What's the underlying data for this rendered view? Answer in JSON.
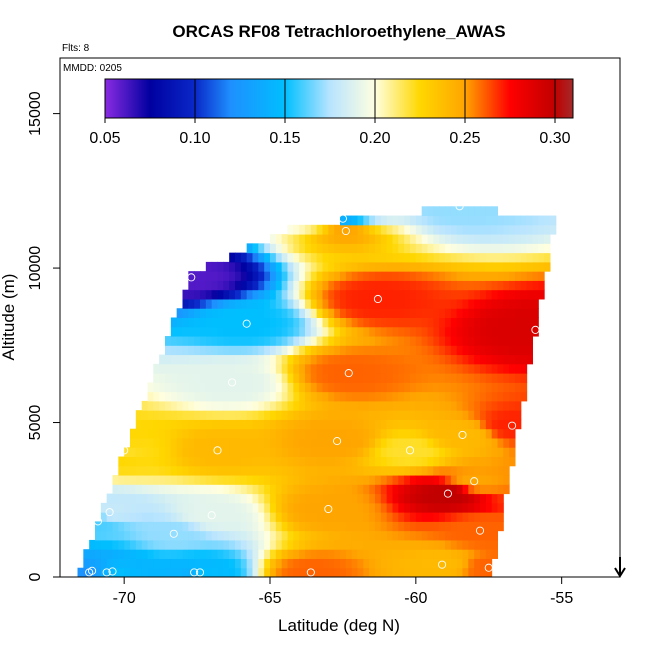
{
  "chart_data": {
    "type": "heatmap",
    "title": "ORCAS RF08 Tetrachloroethylene_AWAS",
    "subtitle_flts": "Flts: 8",
    "subtitle_mmdd": "MMDD: 0205",
    "xlabel": "Latitude (deg N)",
    "ylabel": "Altitude (m)",
    "xlim": [
      -72.2,
      -53.0
    ],
    "ylim": [
      0,
      16800
    ],
    "x_ticks": [
      -70,
      -65,
      -60,
      -55
    ],
    "x_tick_labels": [
      "-70",
      "-65",
      "-60",
      "-55"
    ],
    "y_ticks": [
      0,
      5000,
      10000,
      15000
    ],
    "y_tick_labels": [
      "0",
      "5000",
      "10000",
      "15000"
    ],
    "colorbar": {
      "range": [
        0.05,
        0.31
      ],
      "ticks": [
        0.05,
        0.1,
        0.15,
        0.2,
        0.25,
        0.3
      ],
      "tick_labels": [
        "0.05",
        "0.10",
        "0.15",
        "0.20",
        "0.25",
        "0.30"
      ]
    },
    "color_stops": [
      {
        "v": 0.05,
        "c": "#8a2be2"
      },
      {
        "v": 0.075,
        "c": "#0000a0"
      },
      {
        "v": 0.1,
        "c": "#0a28c8"
      },
      {
        "v": 0.12,
        "c": "#1e90ff"
      },
      {
        "v": 0.15,
        "c": "#00bfff"
      },
      {
        "v": 0.175,
        "c": "#b8e4ff"
      },
      {
        "v": 0.2,
        "c": "#ffffe0"
      },
      {
        "v": 0.225,
        "c": "#ffd700"
      },
      {
        "v": 0.25,
        "c": "#ffa500"
      },
      {
        "v": 0.275,
        "c": "#ff0000"
      },
      {
        "v": 0.3,
        "c": "#c00000"
      },
      {
        "v": 0.31,
        "c": "#a52a2a"
      }
    ],
    "samples": [
      {
        "lat": -71.2,
        "alt": 150,
        "value": 0.12
      },
      {
        "lat": -71.1,
        "alt": 200,
        "value": 0.13
      },
      {
        "lat": -70.6,
        "alt": 150,
        "value": 0.14
      },
      {
        "lat": -70.4,
        "alt": 180,
        "value": 0.15
      },
      {
        "lat": -70.9,
        "alt": 1800,
        "value": 0.16
      },
      {
        "lat": -70.5,
        "alt": 2100,
        "value": 0.18
      },
      {
        "lat": -70.2,
        "alt": 4100,
        "value": 0.23
      },
      {
        "lat": -70.0,
        "alt": 4100,
        "value": 0.22
      },
      {
        "lat": -68.3,
        "alt": 1400,
        "value": 0.17
      },
      {
        "lat": -67.6,
        "alt": 150,
        "value": 0.14
      },
      {
        "lat": -67.4,
        "alt": 150,
        "value": 0.15
      },
      {
        "lat": -67.0,
        "alt": 2000,
        "value": 0.19
      },
      {
        "lat": -66.8,
        "alt": 4100,
        "value": 0.24
      },
      {
        "lat": -66.3,
        "alt": 6300,
        "value": 0.19
      },
      {
        "lat": -65.8,
        "alt": 8200,
        "value": 0.15
      },
      {
        "lat": -67.7,
        "alt": 9700,
        "value": 0.06
      },
      {
        "lat": -63.6,
        "alt": 150,
        "value": 0.26
      },
      {
        "lat": -63.0,
        "alt": 2200,
        "value": 0.25
      },
      {
        "lat": -62.7,
        "alt": 4400,
        "value": 0.25
      },
      {
        "lat": -62.3,
        "alt": 6600,
        "value": 0.26
      },
      {
        "lat": -62.4,
        "alt": 11200,
        "value": 0.25
      },
      {
        "lat": -62.5,
        "alt": 11600,
        "value": 0.14
      },
      {
        "lat": -61.3,
        "alt": 9000,
        "value": 0.27
      },
      {
        "lat": -60.2,
        "alt": 4100,
        "value": 0.22
      },
      {
        "lat": -59.1,
        "alt": 400,
        "value": 0.24
      },
      {
        "lat": -58.9,
        "alt": 2700,
        "value": 0.3
      },
      {
        "lat": -58.4,
        "alt": 4600,
        "value": 0.24
      },
      {
        "lat": -58.0,
        "alt": 3100,
        "value": 0.25
      },
      {
        "lat": -57.8,
        "alt": 1500,
        "value": 0.26
      },
      {
        "lat": -57.5,
        "alt": 300,
        "value": 0.26
      },
      {
        "lat": -56.7,
        "alt": 4900,
        "value": 0.27
      },
      {
        "lat": -55.9,
        "alt": 8000,
        "value": 0.29
      },
      {
        "lat": -58.5,
        "alt": 12000,
        "value": 0.17
      }
    ],
    "flight_direction_marker": {
      "lat": -53.0,
      "symbol": "down-arrow"
    }
  }
}
